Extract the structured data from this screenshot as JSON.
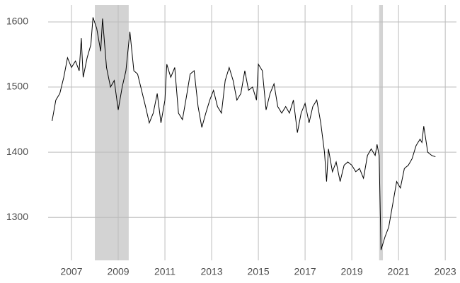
{
  "chart_data": {
    "type": "line",
    "x": [
      2006.17,
      2006.33,
      2006.5,
      2006.67,
      2006.83,
      2007.0,
      2007.17,
      2007.33,
      2007.42,
      2007.5,
      2007.67,
      2007.83,
      2007.92,
      2008.08,
      2008.25,
      2008.33,
      2008.5,
      2008.67,
      2008.83,
      2009.0,
      2009.17,
      2009.33,
      2009.5,
      2009.67,
      2009.83,
      2010.0,
      2010.17,
      2010.33,
      2010.5,
      2010.67,
      2010.83,
      2011.0,
      2011.08,
      2011.25,
      2011.42,
      2011.58,
      2011.75,
      2011.92,
      2012.08,
      2012.25,
      2012.42,
      2012.58,
      2012.75,
      2012.92,
      2013.08,
      2013.25,
      2013.42,
      2013.58,
      2013.75,
      2013.92,
      2014.08,
      2014.25,
      2014.42,
      2014.58,
      2014.75,
      2014.92,
      2015.0,
      2015.17,
      2015.33,
      2015.5,
      2015.67,
      2015.83,
      2016.0,
      2016.17,
      2016.33,
      2016.5,
      2016.67,
      2016.83,
      2017.0,
      2017.17,
      2017.33,
      2017.5,
      2017.67,
      2017.83,
      2017.92,
      2018.0,
      2018.17,
      2018.33,
      2018.5,
      2018.67,
      2018.83,
      2019.0,
      2019.17,
      2019.33,
      2019.5,
      2019.67,
      2019.83,
      2020.0,
      2020.08,
      2020.17,
      2020.25,
      2020.42,
      2020.58,
      2020.75,
      2020.92,
      2021.08,
      2021.25,
      2021.42,
      2021.58,
      2021.75,
      2021.92,
      2022.0,
      2022.08,
      2022.25,
      2022.42,
      2022.58
    ],
    "series": [
      {
        "color": "#000000",
        "values": [
          1448,
          1480,
          1490,
          1515,
          1545,
          1530,
          1540,
          1525,
          1575,
          1515,
          1545,
          1565,
          1607,
          1590,
          1555,
          1605,
          1530,
          1500,
          1510,
          1465,
          1500,
          1525,
          1585,
          1525,
          1520,
          1495,
          1470,
          1445,
          1460,
          1490,
          1445,
          1480,
          1535,
          1515,
          1530,
          1460,
          1450,
          1485,
          1520,
          1525,
          1470,
          1438,
          1460,
          1480,
          1495,
          1470,
          1460,
          1510,
          1530,
          1510,
          1480,
          1490,
          1525,
          1495,
          1500,
          1480,
          1535,
          1525,
          1465,
          1490,
          1505,
          1470,
          1460,
          1470,
          1460,
          1480,
          1430,
          1460,
          1475,
          1445,
          1470,
          1480,
          1445,
          1400,
          1355,
          1405,
          1370,
          1385,
          1355,
          1380,
          1385,
          1380,
          1370,
          1375,
          1360,
          1395,
          1405,
          1395,
          1412,
          1395,
          1250,
          1270,
          1285,
          1320,
          1355,
          1345,
          1375,
          1380,
          1390,
          1410,
          1420,
          1415,
          1440,
          1400,
          1395,
          1393
        ]
      }
    ],
    "shaded": [
      {
        "start": 2008.0,
        "end": 2009.45
      },
      {
        "start": 2020.17,
        "end": 2020.33
      }
    ],
    "shade_color": "#d3d3d3",
    "xlim": [
      2006.0,
      2023.48
    ],
    "ylim": [
      1234,
      1626
    ],
    "xticks": [
      2007,
      2009,
      2011,
      2013,
      2015,
      2017,
      2019,
      2021,
      2023
    ],
    "yticks": [
      1300,
      1400,
      1500,
      1600
    ],
    "grid": true
  }
}
